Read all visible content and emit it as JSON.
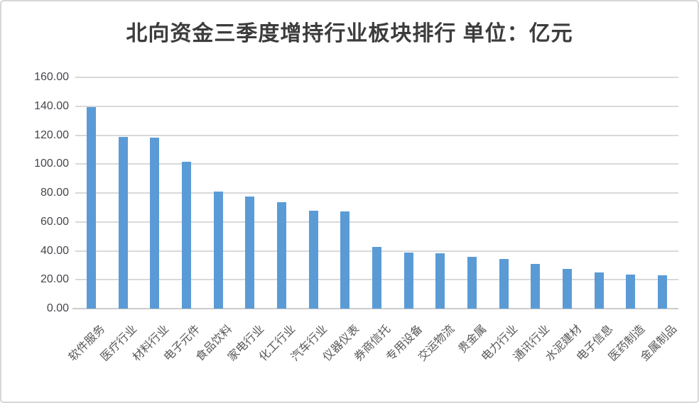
{
  "title": "北向资金三季度增持行业板块排行 单位：亿元",
  "colors": {
    "bar": "#5b9bd5",
    "gridline": "#d9d9d9",
    "axis_line": "#cbcbcb",
    "title_text": "#3c3c3c",
    "y_tick_text": "#45474e",
    "x_tick_text": "#595959",
    "card_border": "#d7d7d7"
  },
  "chart_data": {
    "type": "bar",
    "title": "北向资金三季度增持行业板块排行",
    "unit_label": "单位：亿元",
    "categories": [
      "软件服务",
      "医疗行业",
      "材料行业",
      "电子元件",
      "食品饮料",
      "家电行业",
      "化工行业",
      "汽车行业",
      "仪器仪表",
      "券商信托",
      "专用设备",
      "交运物流",
      "贵金属",
      "电力行业",
      "通讯行业",
      "水泥建材",
      "电子信息",
      "医药制造",
      "金属制品"
    ],
    "values": [
      139.3,
      118.6,
      118.4,
      101.8,
      80.9,
      77.6,
      73.8,
      67.9,
      67.4,
      42.9,
      38.9,
      38.4,
      35.9,
      34.4,
      31.1,
      27.4,
      25.0,
      23.6,
      22.9
    ],
    "xlabel": "",
    "ylabel": "",
    "ylim": [
      0,
      160
    ],
    "ytick_step": 20,
    "ytick_decimals": 2,
    "grid": true,
    "legend": false,
    "x_label_rotation_deg": -45
  }
}
